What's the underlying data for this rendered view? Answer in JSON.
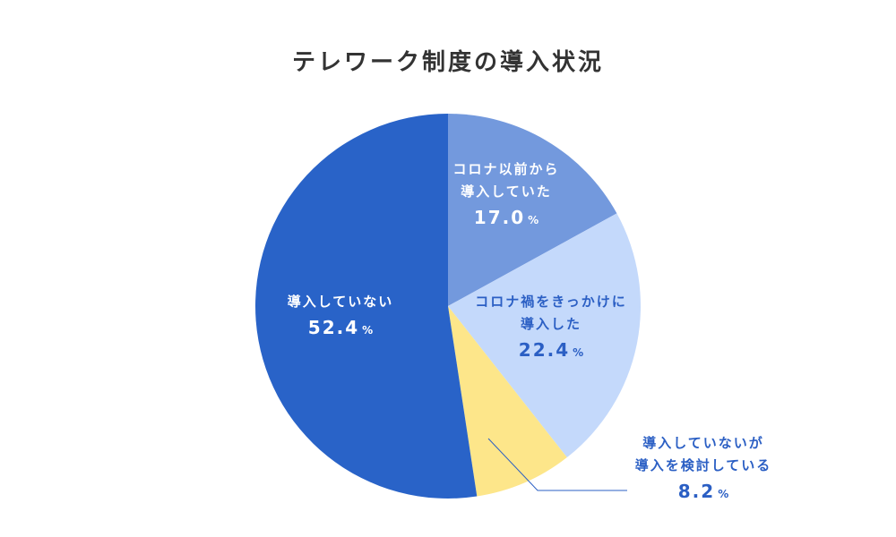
{
  "chart_data": {
    "type": "pie",
    "title": "テレワーク制度の導入状況",
    "slices": [
      {
        "label_lines": [
          "コロナ以前から",
          "導入していた"
        ],
        "value": 17.0,
        "value_text": "17.0",
        "unit": "%",
        "color": "#7399dd",
        "text_color": "#ffffff"
      },
      {
        "label_lines": [
          "コロナ禍をきっかけに",
          "導入した"
        ],
        "value": 22.4,
        "value_text": "22.4",
        "unit": "%",
        "color": "#c4d9fb",
        "text_color": "#2b5fc4"
      },
      {
        "label_lines": [
          "導入していないが",
          "導入を検討している"
        ],
        "value": 8.2,
        "value_text": "8.2",
        "unit": "%",
        "color": "#fde68a",
        "text_color": "#2b5fc4"
      },
      {
        "label_lines": [
          "導入していない"
        ],
        "value": 52.4,
        "value_text": "52.4",
        "unit": "%",
        "color": "#2963c8",
        "text_color": "#ffffff"
      }
    ],
    "start_angle_deg": 0,
    "direction": "clockwise"
  }
}
